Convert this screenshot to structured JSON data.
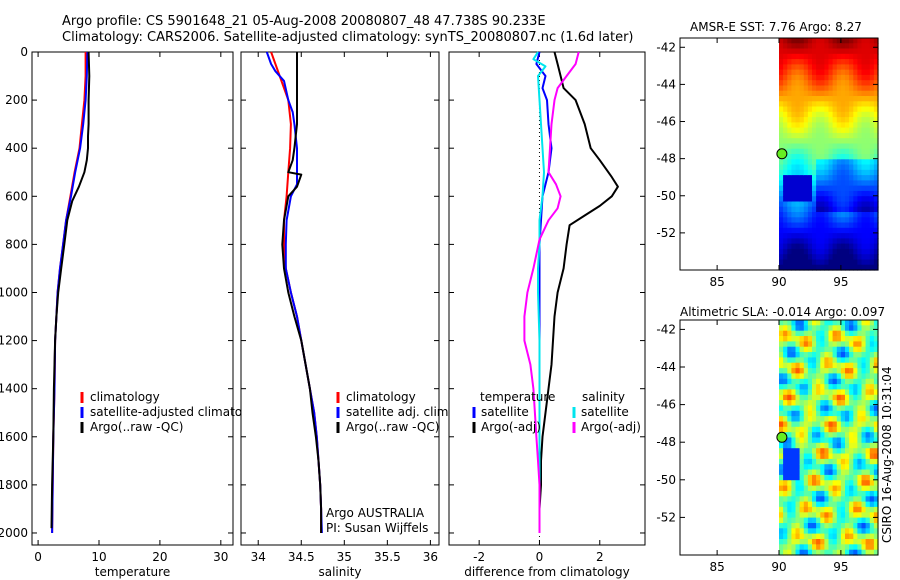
{
  "header": {
    "line1": "Argo profile: CS 5901648_21 05-Aug-2008 20080807_48 47.738S 90.233E",
    "line2": "Climatology: CARS2006. Satellite-adjusted climatology: synTS_20080807.nc (1.6d later)"
  },
  "credit": "CSIRO 16-Aug-2008 10:31:04",
  "colors": {
    "red": "#ff0000",
    "blue": "#0000ff",
    "black": "#000000",
    "cyan": "#00e5ee",
    "magenta": "#ff00ff",
    "dot": "#66ee22"
  },
  "chart_data": [
    {
      "type": "line",
      "xlabel": "temperature",
      "xlim": [
        -1,
        32
      ],
      "ylim": [
        2050,
        0
      ],
      "xticks": [
        0,
        10,
        20,
        30
      ],
      "yticks": [
        0,
        200,
        400,
        600,
        800,
        1000,
        1200,
        1400,
        1600,
        1800,
        2000
      ],
      "legend": [
        "climatology",
        "satellite-adjusted climatology",
        "Argo(..raw -QC)"
      ],
      "series": [
        {
          "name": "climatology",
          "color": "#ff0000",
          "points": [
            [
              7.8,
              0
            ],
            [
              7.8,
              100
            ],
            [
              7.6,
              200
            ],
            [
              7.2,
              300
            ],
            [
              6.8,
              400
            ],
            [
              6.0,
              500
            ],
            [
              5.3,
              600
            ],
            [
              4.6,
              700
            ],
            [
              4.1,
              800
            ],
            [
              3.6,
              900
            ],
            [
              3.2,
              1000
            ],
            [
              3.0,
              1100
            ],
            [
              2.8,
              1200
            ],
            [
              2.7,
              1400
            ],
            [
              2.5,
              1600
            ],
            [
              2.4,
              1800
            ],
            [
              2.3,
              2000
            ]
          ]
        },
        {
          "name": "satellite-adjusted climatology",
          "color": "#0000ff",
          "points": [
            [
              8.1,
              0
            ],
            [
              8.0,
              100
            ],
            [
              7.8,
              200
            ],
            [
              7.4,
              300
            ],
            [
              6.9,
              400
            ],
            [
              6.1,
              500
            ],
            [
              5.4,
              600
            ],
            [
              4.6,
              700
            ],
            [
              4.1,
              800
            ],
            [
              3.6,
              900
            ],
            [
              3.2,
              1000
            ],
            [
              3.0,
              1100
            ],
            [
              2.8,
              1200
            ],
            [
              2.7,
              1400
            ],
            [
              2.5,
              1600
            ],
            [
              2.4,
              1800
            ],
            [
              2.3,
              2000
            ]
          ]
        },
        {
          "name": "Argo(..raw -QC)",
          "color": "#000000",
          "points": [
            [
              8.3,
              0
            ],
            [
              8.4,
              100
            ],
            [
              8.3,
              200
            ],
            [
              8.3,
              300
            ],
            [
              8.2,
              350
            ],
            [
              8.2,
              400
            ],
            [
              8.0,
              450
            ],
            [
              7.6,
              500
            ],
            [
              6.7,
              560
            ],
            [
              5.6,
              620
            ],
            [
              4.8,
              700
            ],
            [
              4.3,
              800
            ],
            [
              3.8,
              900
            ],
            [
              3.3,
              1000
            ],
            [
              3.0,
              1100
            ],
            [
              2.8,
              1200
            ],
            [
              2.6,
              1400
            ],
            [
              2.5,
              1600
            ],
            [
              2.3,
              1800
            ],
            [
              2.2,
              1980
            ]
          ]
        }
      ]
    },
    {
      "type": "line",
      "xlabel": "salinity",
      "xlim": [
        33.8,
        36.1
      ],
      "ylim": [
        2050,
        0
      ],
      "xticks": [
        34,
        34.5,
        35,
        35.5,
        36
      ],
      "yticks": [
        0,
        200,
        400,
        600,
        800,
        1000,
        1200,
        1400,
        1600,
        1800,
        2000
      ],
      "legend": [
        "climatology",
        "satellite adj. clim.",
        "Argo(..raw -QC)"
      ],
      "annotations": [
        "Argo AUSTRALIA",
        "PI: Susan Wijffels"
      ],
      "series": [
        {
          "name": "climatology",
          "color": "#ff0000",
          "points": [
            [
              34.15,
              0
            ],
            [
              34.2,
              50
            ],
            [
              34.25,
              100
            ],
            [
              34.3,
              150
            ],
            [
              34.35,
              200
            ],
            [
              34.38,
              300
            ],
            [
              34.37,
              400
            ],
            [
              34.35,
              500
            ],
            [
              34.33,
              600
            ],
            [
              34.3,
              700
            ],
            [
              34.3,
              800
            ],
            [
              34.32,
              900
            ],
            [
              34.38,
              1000
            ],
            [
              34.45,
              1100
            ],
            [
              34.5,
              1200
            ],
            [
              34.55,
              1300
            ],
            [
              34.6,
              1400
            ],
            [
              34.65,
              1500
            ],
            [
              34.68,
              1600
            ],
            [
              34.7,
              1700
            ],
            [
              34.72,
              1800
            ],
            [
              34.73,
              1900
            ],
            [
              34.73,
              2000
            ]
          ]
        },
        {
          "name": "satellite adj. clim.",
          "color": "#0000ff",
          "points": [
            [
              34.1,
              0
            ],
            [
              34.15,
              50
            ],
            [
              34.2,
              80
            ],
            [
              34.3,
              120
            ],
            [
              34.35,
              200
            ],
            [
              34.4,
              250
            ],
            [
              34.42,
              300
            ],
            [
              34.45,
              400
            ],
            [
              34.45,
              500
            ],
            [
              34.45,
              550
            ],
            [
              34.38,
              600
            ],
            [
              34.33,
              700
            ],
            [
              34.32,
              800
            ],
            [
              34.32,
              900
            ],
            [
              34.38,
              1000
            ],
            [
              34.45,
              1100
            ],
            [
              34.5,
              1200
            ],
            [
              34.55,
              1300
            ],
            [
              34.6,
              1400
            ],
            [
              34.65,
              1500
            ],
            [
              34.68,
              1600
            ],
            [
              34.7,
              1700
            ],
            [
              34.72,
              1800
            ],
            [
              34.73,
              1900
            ],
            [
              34.74,
              2000
            ]
          ]
        },
        {
          "name": "Argo(..raw -QC)",
          "color": "#000000",
          "points": [
            [
              34.45,
              0
            ],
            [
              34.45,
              100
            ],
            [
              34.45,
              200
            ],
            [
              34.45,
              300
            ],
            [
              34.42,
              400
            ],
            [
              34.4,
              450
            ],
            [
              34.35,
              500
            ],
            [
              34.5,
              510
            ],
            [
              34.45,
              560
            ],
            [
              34.35,
              600
            ],
            [
              34.3,
              700
            ],
            [
              34.28,
              800
            ],
            [
              34.3,
              900
            ],
            [
              34.35,
              1000
            ],
            [
              34.42,
              1100
            ],
            [
              34.5,
              1200
            ],
            [
              34.55,
              1300
            ],
            [
              34.6,
              1400
            ],
            [
              34.63,
              1500
            ],
            [
              34.67,
              1600
            ],
            [
              34.7,
              1700
            ],
            [
              34.72,
              1800
            ],
            [
              34.73,
              1900
            ],
            [
              34.73,
              2000
            ]
          ]
        }
      ]
    },
    {
      "type": "line",
      "xlabel": "difference from climatology",
      "xlim": [
        -3,
        3.5
      ],
      "ylim": [
        2050,
        0
      ],
      "xticks": [
        -2,
        0,
        2
      ],
      "yticks": [
        0,
        200,
        400,
        600,
        800,
        1000,
        1200,
        1400,
        1600,
        1800,
        2000
      ],
      "legend_groups": [
        {
          "heading": "temperature",
          "entries": [
            "satellite",
            "Argo(-adj)"
          ]
        },
        {
          "heading": "salinity",
          "entries": [
            "satellite",
            "Argo(-adj)"
          ]
        }
      ],
      "series": [
        {
          "name": "temperature satellite",
          "color": "#0000ff",
          "points": [
            [
              0.0,
              0
            ],
            [
              -0.1,
              50
            ],
            [
              0.2,
              100
            ],
            [
              0.1,
              150
            ],
            [
              0.25,
              200
            ],
            [
              0.3,
              300
            ],
            [
              0.4,
              400
            ],
            [
              0.3,
              500
            ],
            [
              0.1,
              600
            ],
            [
              0.05,
              700
            ],
            [
              0,
              800
            ],
            [
              0,
              900
            ],
            [
              0,
              1000
            ],
            [
              0,
              1200
            ],
            [
              0,
              1400
            ],
            [
              0,
              1600
            ],
            [
              0,
              1800
            ],
            [
              0,
              2000
            ]
          ]
        },
        {
          "name": "temperature Argo(-adj)",
          "color": "#000000",
          "points": [
            [
              0.5,
              0
            ],
            [
              0.6,
              50
            ],
            [
              0.7,
              100
            ],
            [
              0.8,
              150
            ],
            [
              1.2,
              200
            ],
            [
              1.5,
              300
            ],
            [
              1.7,
              400
            ],
            [
              2.0,
              450
            ],
            [
              2.4,
              520
            ],
            [
              2.6,
              560
            ],
            [
              2.4,
              600
            ],
            [
              2.0,
              640
            ],
            [
              1.5,
              680
            ],
            [
              1.0,
              720
            ],
            [
              0.9,
              800
            ],
            [
              0.8,
              900
            ],
            [
              0.6,
              1000
            ],
            [
              0.5,
              1100
            ],
            [
              0.45,
              1200
            ],
            [
              0.4,
              1300
            ],
            [
              0.3,
              1400
            ],
            [
              0.2,
              1500
            ],
            [
              0.1,
              1600
            ],
            [
              0.05,
              1700
            ],
            [
              0.05,
              1800
            ],
            [
              0,
              1900
            ],
            [
              0,
              2000
            ]
          ]
        },
        {
          "name": "salinity satellite",
          "color": "#00e5ee",
          "points": [
            [
              -0.05,
              0
            ],
            [
              -0.2,
              30
            ],
            [
              0.2,
              60
            ],
            [
              -0.05,
              100
            ],
            [
              0,
              200
            ],
            [
              0.1,
              400
            ],
            [
              0.15,
              500
            ],
            [
              0.1,
              600
            ],
            [
              0,
              700
            ],
            [
              0,
              800
            ],
            [
              -0.05,
              900
            ],
            [
              -0.05,
              1000
            ],
            [
              0,
              1200
            ],
            [
              0,
              1400
            ],
            [
              0,
              1600
            ],
            [
              0,
              1800
            ],
            [
              0,
              2000
            ]
          ]
        },
        {
          "name": "salinity Argo(-adj)",
          "color": "#ff00ff",
          "points": [
            [
              1.3,
              0
            ],
            [
              1.2,
              50
            ],
            [
              0.9,
              100
            ],
            [
              0.6,
              150
            ],
            [
              0.5,
              200
            ],
            [
              0.4,
              300
            ],
            [
              0.35,
              400
            ],
            [
              0.3,
              500
            ],
            [
              0.55,
              550
            ],
            [
              0.7,
              600
            ],
            [
              0.6,
              650
            ],
            [
              0.3,
              700
            ],
            [
              0.0,
              780
            ],
            [
              -0.2,
              900
            ],
            [
              -0.4,
              1000
            ],
            [
              -0.5,
              1100
            ],
            [
              -0.5,
              1200
            ],
            [
              -0.3,
              1300
            ],
            [
              -0.2,
              1400
            ],
            [
              -0.15,
              1500
            ],
            [
              -0.1,
              1600
            ],
            [
              -0.05,
              1700
            ],
            [
              0,
              1800
            ],
            [
              0,
              1900
            ],
            [
              0,
              2000
            ]
          ]
        }
      ]
    },
    {
      "type": "heatmap",
      "title": "AMSR-E SST: 7.76 Argo: 8.27",
      "xlim": [
        82,
        98
      ],
      "ylim": [
        -54,
        -41.5
      ],
      "xticks": [
        85,
        90,
        95
      ],
      "yticks": [
        -42,
        -44,
        -46,
        -48,
        -50,
        -52
      ],
      "data_lon_range": [
        90,
        98
      ],
      "marker": {
        "lon": 90.233,
        "lat": -47.738
      }
    },
    {
      "type": "heatmap",
      "title": "Altimetric SLA: -0.014 Argo: 0.097",
      "xlim": [
        82,
        98
      ],
      "ylim": [
        -54,
        -41.5
      ],
      "xticks": [
        85,
        90,
        95
      ],
      "yticks": [
        -42,
        -44,
        -46,
        -48,
        -50,
        -52
      ],
      "data_lon_range": [
        90,
        98
      ],
      "marker": {
        "lon": 90.233,
        "lat": -47.738
      }
    }
  ]
}
